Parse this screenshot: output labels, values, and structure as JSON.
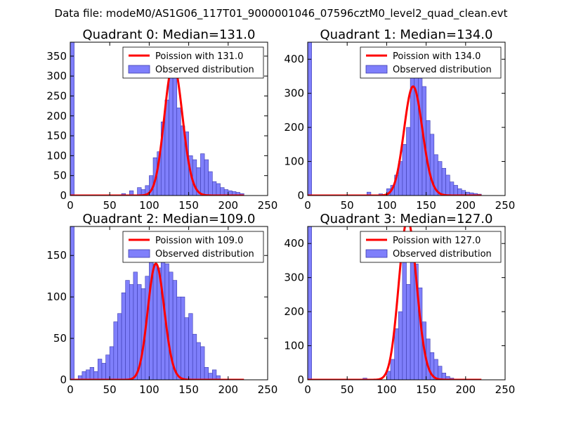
{
  "figure": {
    "suptitle": "Data file: modeM0/AS1G06_117T01_9000001046_07596cztM0_level2_quad_clean.evt"
  },
  "chart_data": [
    {
      "type": "bar",
      "title": "Quadrant 0: Median=131.0",
      "xlim": [
        0,
        250
      ],
      "ylim": [
        0,
        385
      ],
      "xticks": [
        0,
        50,
        100,
        150,
        200,
        250
      ],
      "yticks": [
        0,
        50,
        100,
        150,
        200,
        250,
        300,
        350
      ],
      "legend": {
        "location": "top-right",
        "line_label": "Poission with 131.0",
        "bar_label": "Observed distribution"
      },
      "hist": {
        "bin_width": 5,
        "bin_starts": [
          0,
          65,
          75,
          85,
          90,
          95,
          100,
          105,
          110,
          115,
          120,
          125,
          130,
          135,
          140,
          145,
          150,
          155,
          160,
          165,
          170,
          175,
          180,
          185,
          190,
          195,
          200,
          205,
          210,
          215
        ],
        "counts": [
          385,
          5,
          12,
          20,
          15,
          25,
          50,
          95,
          110,
          185,
          240,
          355,
          300,
          220,
          175,
          160,
          100,
          90,
          70,
          105,
          90,
          60,
          35,
          30,
          20,
          15,
          12,
          10,
          8,
          5
        ]
      },
      "poisson": {
        "mean": 131,
        "peak": 330
      }
    },
    {
      "type": "bar",
      "title": "Quadrant 1: Median=134.0",
      "xlim": [
        0,
        250
      ],
      "ylim": [
        0,
        450
      ],
      "xticks": [
        0,
        50,
        100,
        150,
        200,
        250
      ],
      "yticks": [
        0,
        100,
        200,
        300,
        400
      ],
      "legend": {
        "location": "top-right",
        "line_label": "Poission with 134.0",
        "bar_label": "Observed distribution"
      },
      "hist": {
        "bin_width": 5,
        "bin_starts": [
          0,
          75,
          90,
          100,
          105,
          110,
          115,
          120,
          125,
          130,
          135,
          140,
          145,
          150,
          155,
          160,
          165,
          170,
          175,
          180,
          185,
          190,
          195,
          200,
          205,
          210,
          215
        ],
        "counts": [
          450,
          10,
          5,
          20,
          30,
          60,
          100,
          150,
          200,
          380,
          420,
          380,
          320,
          220,
          180,
          120,
          100,
          80,
          60,
          40,
          30,
          20,
          15,
          10,
          8,
          6,
          4
        ]
      },
      "poisson": {
        "mean": 134,
        "peak": 320
      }
    },
    {
      "type": "bar",
      "title": "Quadrant 2: Median=109.0",
      "xlim": [
        0,
        250
      ],
      "ylim": [
        0,
        185
      ],
      "xticks": [
        0,
        50,
        100,
        150,
        200,
        250
      ],
      "yticks": [
        0,
        50,
        100,
        150
      ],
      "legend": {
        "location": "top-right",
        "line_label": "Poission with 109.0",
        "bar_label": "Observed distribution"
      },
      "hist": {
        "bin_width": 5,
        "bin_starts": [
          0,
          10,
          15,
          20,
          25,
          30,
          35,
          40,
          45,
          50,
          55,
          60,
          65,
          70,
          75,
          80,
          85,
          90,
          95,
          100,
          105,
          110,
          115,
          120,
          125,
          130,
          135,
          140,
          145,
          150,
          155,
          160,
          165,
          170,
          175,
          180,
          185
        ],
        "counts": [
          185,
          5,
          10,
          12,
          15,
          10,
          25,
          20,
          30,
          40,
          70,
          80,
          105,
          120,
          115,
          130,
          115,
          110,
          125,
          150,
          140,
          135,
          175,
          140,
          130,
          120,
          100,
          100,
          75,
          80,
          55,
          45,
          40,
          15,
          8,
          12,
          5
        ]
      },
      "poisson": {
        "mean": 109,
        "peak": 140
      }
    },
    {
      "type": "bar",
      "title": "Quadrant 3: Median=127.0",
      "xlim": [
        0,
        250
      ],
      "ylim": [
        0,
        450
      ],
      "xticks": [
        0,
        50,
        100,
        150,
        200,
        250
      ],
      "yticks": [
        0,
        100,
        200,
        300,
        400
      ],
      "legend": {
        "location": "top-right",
        "line_label": "Poission with 127.0",
        "bar_label": "Observed distribution"
      },
      "hist": {
        "bin_width": 5,
        "bin_starts": [
          0,
          70,
          100,
          105,
          110,
          115,
          120,
          125,
          130,
          135,
          140,
          145,
          150,
          155,
          160,
          165,
          170,
          175,
          180
        ],
        "counts": [
          450,
          5,
          25,
          60,
          150,
          200,
          360,
          280,
          420,
          340,
          270,
          170,
          120,
          80,
          60,
          40,
          20,
          10,
          5
        ]
      },
      "poisson": {
        "mean": 127,
        "peak": 470
      }
    }
  ]
}
